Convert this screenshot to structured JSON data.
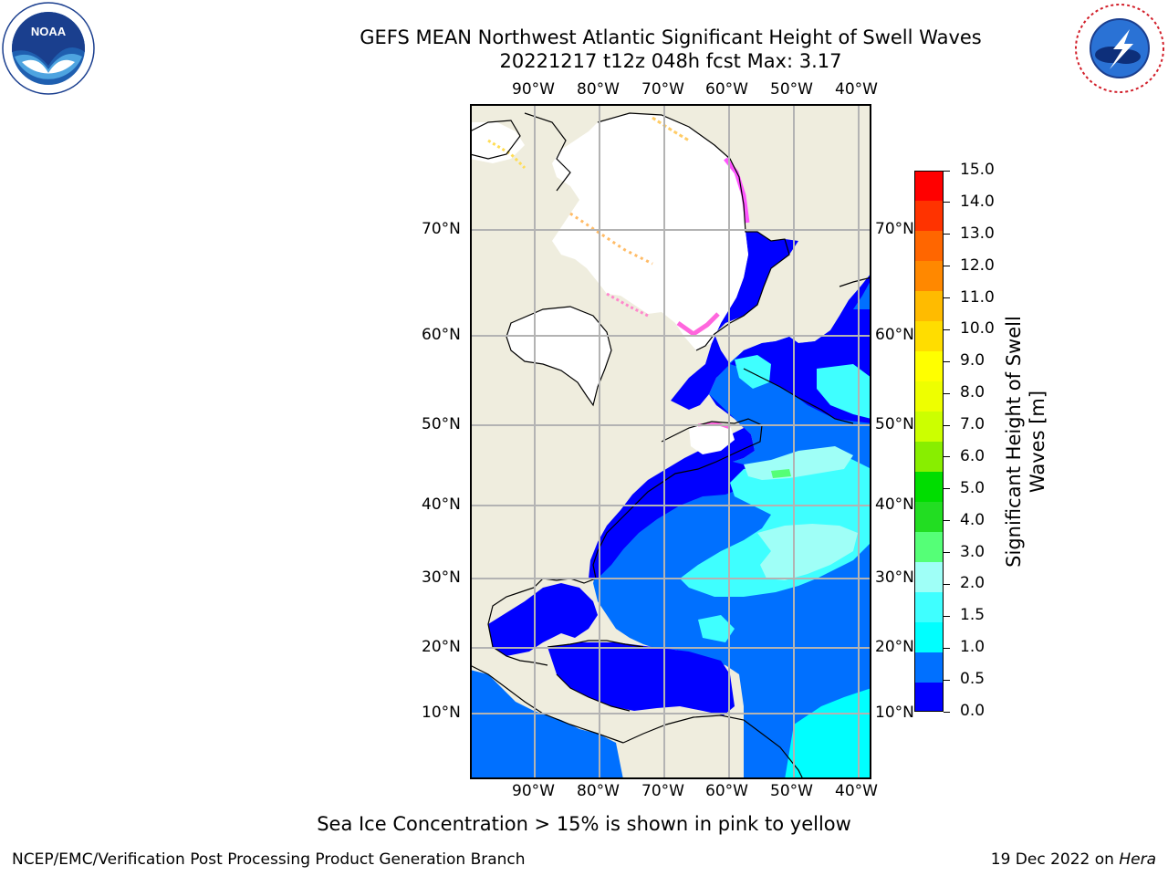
{
  "header": {
    "title_line1": "GEFS MEAN Northwest Atlantic Significant Height of Swell Waves",
    "title_line2": "20221217 t12z 048h fcst   Max: 3.17"
  },
  "logos": {
    "left": {
      "name": "NOAA",
      "ring_text": "NATIONAL OCEANIC AND ATMOSPHERIC ADMINISTRATION · U.S. DEPARTMENT OF COMMERCE"
    },
    "right": {
      "ring_text": "NATIONAL WEATHER SERVICE"
    }
  },
  "map": {
    "lon_labels": [
      "90°W",
      "80°W",
      "70°W",
      "60°W",
      "50°W",
      "40°W"
    ],
    "lat_labels": [
      "70°N",
      "60°N",
      "50°N",
      "40°N",
      "30°N",
      "20°N",
      "10°N"
    ],
    "colors": {
      "land": "#efedde",
      "ice_free_white": "#ffffff",
      "grid": "#b3b3b3"
    }
  },
  "colorbar": {
    "label": "Significant Height of Swell Waves [m]",
    "ticks": [
      "15.0",
      "14.0",
      "13.0",
      "12.0",
      "11.0",
      "10.0",
      "9.0",
      "8.0",
      "7.0",
      "6.0",
      "5.0",
      "4.0",
      "3.0",
      "2.0",
      "1.5",
      "1.0",
      "0.5",
      "0.0"
    ],
    "colors_bottom_to_top": [
      "#0000ff",
      "#0070ff",
      "#00ffff",
      "#3fffff",
      "#9ffff7",
      "#55ff77",
      "#22dd22",
      "#00dd00",
      "#88ee00",
      "#ccff00",
      "#eeff00",
      "#ffff00",
      "#ffdd00",
      "#ffbb00",
      "#ff8800",
      "#ff6600",
      "#ff3300",
      "#ff0000"
    ]
  },
  "caption": "Sea Ice Concentration > 15% is shown in pink to yellow",
  "footer": {
    "left": "NCEP/EMC/Verification Post Processing Product Generation Branch",
    "right_prefix": "19 Dec 2022 on ",
    "right_host": "Hera"
  }
}
